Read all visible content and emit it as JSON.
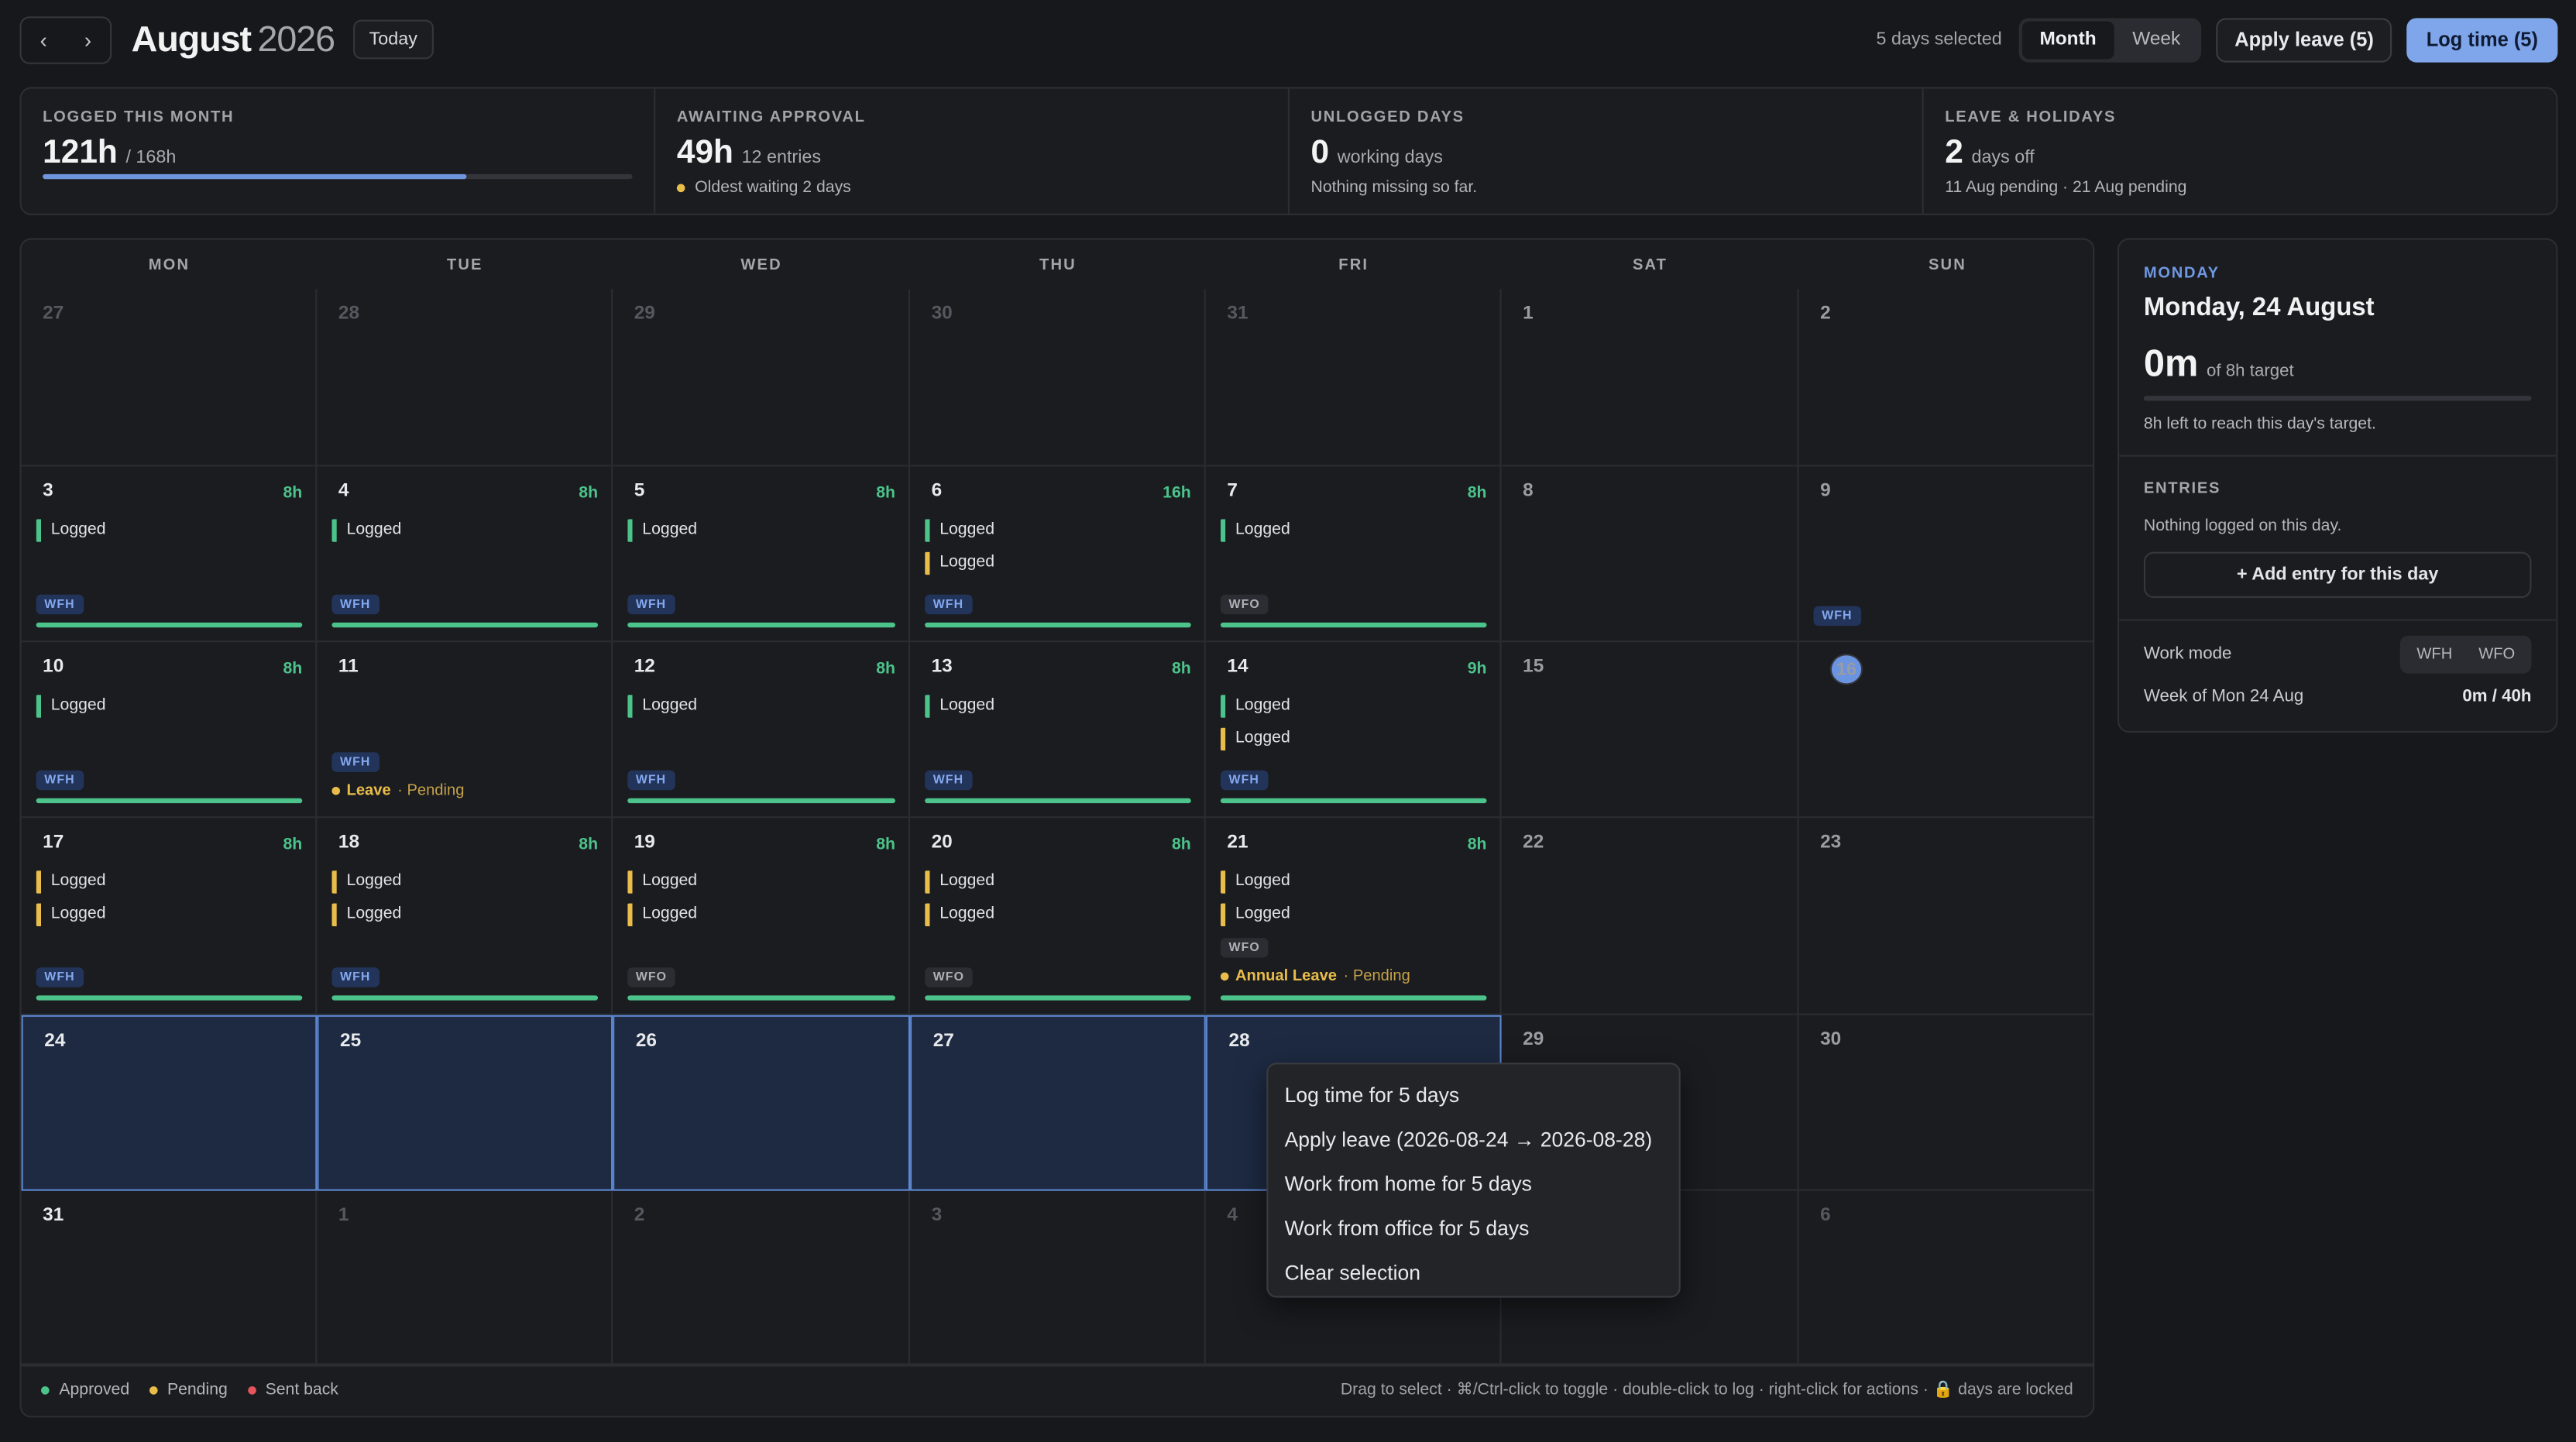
{
  "header": {
    "prev_icon": "chevron-left-icon",
    "next_icon": "chevron-right-icon",
    "month": "August",
    "year": "2026",
    "today_label": "Today",
    "selected_text": "5 days selected",
    "view_month": "Month",
    "view_week": "Week",
    "apply_leave_label": "Apply leave (5)",
    "log_time_label": "Log time (5)"
  },
  "stats": [
    {
      "label": "LOGGED THIS MONTH",
      "value": "121h",
      "unit": "/ 168h",
      "progress": 0.72
    },
    {
      "label": "AWAITING APPROVAL",
      "value": "49h",
      "unit": "12 entries",
      "sub": "Oldest waiting 2 days"
    },
    {
      "label": "UNLOGGED DAYS",
      "value": "0",
      "unit": "working days",
      "sub": "Nothing missing so far."
    },
    {
      "label": "LEAVE & HOLIDAYS",
      "value": "2",
      "unit": "days off",
      "sub": "11 Aug pending · 21 Aug pending"
    }
  ],
  "weekdays": [
    "MON",
    "TUE",
    "WED",
    "THU",
    "FRI",
    "SAT",
    "SUN"
  ],
  "weeks": [
    [
      {
        "d": "27",
        "other": true
      },
      {
        "d": "28",
        "other": true
      },
      {
        "d": "29",
        "other": true
      },
      {
        "d": "30",
        "other": true
      },
      {
        "d": "31",
        "other": true
      },
      {
        "d": "1"
      },
      {
        "d": "2"
      }
    ],
    [
      {
        "d": "3",
        "hours": "8h",
        "entries": [
          {
            "t": "Logged",
            "s": "approved"
          }
        ],
        "mode": "WFH",
        "bar": true
      },
      {
        "d": "4",
        "hours": "8h",
        "entries": [
          {
            "t": "Logged",
            "s": "approved"
          }
        ],
        "mode": "WFH",
        "bar": true
      },
      {
        "d": "5",
        "hours": "8h",
        "entries": [
          {
            "t": "Logged",
            "s": "approved"
          }
        ],
        "mode": "WFH",
        "bar": true
      },
      {
        "d": "6",
        "hours": "16h",
        "entries": [
          {
            "t": "Logged",
            "s": "approved"
          },
          {
            "t": "Logged",
            "s": "pending"
          }
        ],
        "mode": "WFH",
        "bar": true
      },
      {
        "d": "7",
        "hours": "8h",
        "entries": [
          {
            "t": "Logged",
            "s": "approved"
          }
        ],
        "mode": "WFO",
        "bar": true
      },
      {
        "d": "8"
      },
      {
        "d": "9",
        "mode": "WFH"
      }
    ],
    [
      {
        "d": "10",
        "hours": "8h",
        "entries": [
          {
            "t": "Logged",
            "s": "approved"
          }
        ],
        "mode": "WFH",
        "bar": true
      },
      {
        "d": "11",
        "mode": "WFH",
        "leave": {
          "name": "Leave",
          "status": "· Pending"
        }
      },
      {
        "d": "12",
        "hours": "8h",
        "entries": [
          {
            "t": "Logged",
            "s": "approved"
          }
        ],
        "mode": "WFH",
        "bar": true
      },
      {
        "d": "13",
        "hours": "8h",
        "entries": [
          {
            "t": "Logged",
            "s": "approved"
          }
        ],
        "mode": "WFH",
        "bar": true
      },
      {
        "d": "14",
        "hours": "9h",
        "entries": [
          {
            "t": "Logged",
            "s": "approved"
          },
          {
            "t": "Logged",
            "s": "pending"
          }
        ],
        "mode": "WFH",
        "bar": true
      },
      {
        "d": "15"
      },
      {
        "d": "16",
        "today": true
      }
    ],
    [
      {
        "d": "17",
        "hours": "8h",
        "entries": [
          {
            "t": "Logged",
            "s": "pending"
          },
          {
            "t": "Logged",
            "s": "pending"
          }
        ],
        "mode": "WFH",
        "bar": true
      },
      {
        "d": "18",
        "hours": "8h",
        "entries": [
          {
            "t": "Logged",
            "s": "pending"
          },
          {
            "t": "Logged",
            "s": "pending"
          }
        ],
        "mode": "WFH",
        "bar": true
      },
      {
        "d": "19",
        "hours": "8h",
        "entries": [
          {
            "t": "Logged",
            "s": "pending"
          },
          {
            "t": "Logged",
            "s": "pending"
          }
        ],
        "mode": "WFO",
        "bar": true
      },
      {
        "d": "20",
        "hours": "8h",
        "entries": [
          {
            "t": "Logged",
            "s": "pending"
          },
          {
            "t": "Logged",
            "s": "pending"
          }
        ],
        "mode": "WFO",
        "bar": true
      },
      {
        "d": "21",
        "hours": "8h",
        "entries": [
          {
            "t": "Logged",
            "s": "pending"
          },
          {
            "t": "Logged",
            "s": "pending"
          }
        ],
        "mode": "WFO",
        "bar": true,
        "leave": {
          "name": "Annual Leave",
          "status": "· Pending"
        }
      },
      {
        "d": "22"
      },
      {
        "d": "23"
      }
    ],
    [
      {
        "d": "24",
        "selected": true
      },
      {
        "d": "25",
        "selected": true
      },
      {
        "d": "26",
        "selected": true
      },
      {
        "d": "27",
        "selected": true
      },
      {
        "d": "28",
        "selected": true
      },
      {
        "d": "29"
      },
      {
        "d": "30"
      }
    ],
    [
      {
        "d": "31"
      },
      {
        "d": "1",
        "other": true
      },
      {
        "d": "2",
        "other": true
      },
      {
        "d": "3",
        "other": true
      },
      {
        "d": "4",
        "other": true
      },
      {
        "d": "5",
        "other": true
      },
      {
        "d": "6",
        "other": true
      }
    ]
  ],
  "legend": {
    "approved": "Approved",
    "pending": "Pending",
    "sent_back": "Sent back",
    "hint": "Drag to select · ⌘/Ctrl-click to toggle · double-click to log · right-click for actions · 🔒 days are locked"
  },
  "context_menu": [
    "Log time for 5 days",
    "Apply leave (2026-08-24 → 2026-08-28)",
    "Work from home for 5 days",
    "Work from office for 5 days",
    "Clear selection"
  ],
  "side": {
    "weekday": "MONDAY",
    "date": "Monday, 24 August",
    "total": "0m",
    "target": "of 8h target",
    "progress": 0,
    "left_text": "8h left to reach this day's target.",
    "entries_heading": "ENTRIES",
    "no_entries": "Nothing logged on this day.",
    "add_entry": "+ Add entry for this day",
    "work_mode_label": "Work mode",
    "wfh": "WFH",
    "wfo": "WFO",
    "week_label": "Week of Mon 24 Aug",
    "week_value": "0m / 40h"
  },
  "colors": {
    "approved": "#4cc38a",
    "pending": "#e9bd4a",
    "sent_back": "#e5555b",
    "accent": "#7fa6ea"
  }
}
